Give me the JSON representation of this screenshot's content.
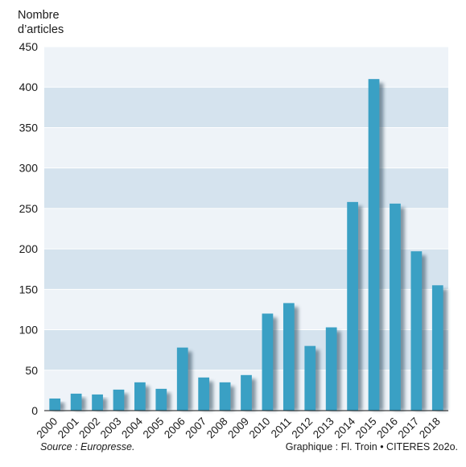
{
  "chart_data": {
    "type": "bar",
    "ylabel_lines": [
      "Nombre",
      "d’articles"
    ],
    "xlabel": "",
    "categories": [
      "2000",
      "2001",
      "2002",
      "2003",
      "2004",
      "2005",
      "2006",
      "2007",
      "2008",
      "2009",
      "2010",
      "2011",
      "2012",
      "2013",
      "2014",
      "2015",
      "2016",
      "2017",
      "2018"
    ],
    "values": [
      15,
      21,
      20,
      26,
      35,
      27,
      78,
      41,
      35,
      44,
      120,
      133,
      80,
      103,
      258,
      410,
      256,
      197,
      155
    ],
    "ylim": [
      0,
      450
    ],
    "yticks": [
      0,
      50,
      100,
      150,
      200,
      250,
      300,
      350,
      400,
      450
    ],
    "grid": true,
    "colors": {
      "bar": "#3aa0c4",
      "shadow": "#2e4a5c",
      "band_light": "#eef3f8",
      "band_dark": "#d5e3ee",
      "grid": "#ffffff"
    }
  },
  "footer": {
    "source": "Source : Europresse.",
    "credit": "Graphique : Fl. Troin • CITERES 2o2o."
  }
}
